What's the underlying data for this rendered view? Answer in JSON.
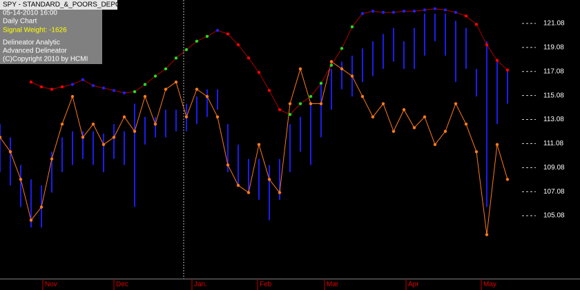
{
  "chart_data": {
    "type": "line",
    "title": "SPY - STANDARD_&_POORS_DEPOS",
    "info_lines": [
      "05-14-2010  16:00",
      "Daily Chart"
    ],
    "signal_line": "Signal Weight: -1626",
    "credit_lines": [
      "Delineator Analytic",
      "Advanced Delineator",
      "(C)Copyright 2010 by HCMI"
    ],
    "x": [
      0,
      3,
      6,
      9,
      12,
      15,
      18,
      21,
      24,
      27,
      30,
      33,
      36,
      39,
      42,
      45,
      48,
      51,
      54,
      57,
      60,
      63,
      66,
      69,
      72,
      75,
      78,
      81,
      84,
      87,
      90,
      93,
      96,
      99,
      102,
      105,
      108,
      111,
      114,
      117,
      120,
      123,
      126,
      129,
      132,
      135,
      138,
      141,
      144,
      147
    ],
    "xlim": [
      0,
      168
    ],
    "xticks": [
      {
        "value": 12.4,
        "label": "Nov"
      },
      {
        "value": 33,
        "label": "Dec"
      },
      {
        "value": 55.6,
        "label": "Jan."
      },
      {
        "value": 74.6,
        "label": "Feb"
      },
      {
        "value": 94,
        "label": "Mar"
      },
      {
        "value": 117.6,
        "label": "Apr"
      },
      {
        "value": 139.4,
        "label": "May"
      }
    ],
    "ylim": [
      99.81,
      123.03
    ],
    "yticks": [
      105.08,
      107.08,
      109.08,
      111.08,
      113.08,
      115.08,
      117.08,
      119.08,
      121.08
    ],
    "bars": {
      "color": "#1c1cf0",
      "high": [
        112.7,
        111.6,
        109.3,
        108.1,
        107.6,
        110.4,
        111.6,
        112.1,
        112.1,
        112.1,
        111.9,
        112.7,
        112.1,
        114.4,
        113.3,
        113.3,
        113.9,
        113.9,
        114.4,
        115.0,
        115.6,
        115.6,
        112.7,
        111.0,
        109.8,
        109.8,
        109.3,
        109.8,
        112.7,
        113.3,
        114.4,
        116.2,
        117.3,
        117.9,
        118.4,
        119.0,
        119.6,
        120.2,
        120.7,
        119.6,
        120.7,
        121.9,
        121.9,
        121.9,
        121.3,
        120.7,
        117.3,
        119.6,
        117.9,
        117.3
      ],
      "low": [
        108.7,
        107.6,
        105.8,
        104.1,
        104.1,
        107.0,
        108.7,
        109.3,
        109.8,
        109.3,
        108.7,
        109.8,
        109.3,
        105.8,
        111.0,
        111.6,
        111.6,
        112.1,
        112.1,
        112.7,
        113.3,
        113.9,
        108.7,
        107.6,
        107.0,
        106.4,
        104.7,
        106.4,
        108.7,
        110.4,
        109.3,
        111.6,
        113.9,
        115.6,
        115.0,
        116.2,
        116.7,
        117.3,
        117.9,
        117.3,
        117.3,
        118.4,
        119.6,
        118.4,
        116.2,
        117.3,
        115.0,
        105.8,
        112.7,
        114.4
      ]
    },
    "trend": {
      "line_color": "#b00000",
      "values": [
        null,
        null,
        null,
        116.2,
        115.8,
        115.6,
        115.8,
        116.0,
        116.4,
        115.9,
        115.7,
        115.5,
        115.3,
        115.4,
        116.0,
        116.7,
        117.3,
        118.2,
        118.9,
        119.6,
        120.0,
        120.5,
        120.2,
        119.3,
        118.2,
        117.0,
        115.5,
        113.9,
        113.5,
        114.4,
        115.0,
        116.1,
        117.6,
        119.0,
        120.8,
        121.9,
        122.1,
        122.0,
        122.0,
        122.1,
        122.1,
        122.2,
        122.3,
        122.2,
        122.0,
        121.7,
        121.0,
        119.3,
        118.0,
        117.2
      ],
      "point_colors": [
        "#ff0000",
        "#ff0000",
        "#ff0000",
        "#ff0000",
        "#ff0000",
        "#ff0000",
        "#ff0000",
        "#2020ff",
        "#2020ff",
        "#2020ff",
        "#2020ff",
        "#2020ff",
        "#2020ff",
        "#22dd22",
        "#22dd22",
        "#22dd22",
        "#22dd22",
        "#22dd22",
        "#22dd22",
        "#22dd22",
        "#22dd22",
        "#2020ff",
        "#ff0000",
        "#ff0000",
        "#ff0000",
        "#ff0000",
        "#ff0000",
        "#ff0000",
        "#22dd22",
        "#22dd22",
        "#22dd22",
        "#22dd22",
        "#22dd22",
        "#22dd22",
        "#22dd22",
        "#2020ff",
        "#2020ff",
        "#2020ff",
        "#2020ff",
        "#2020ff",
        "#2020ff",
        "#2020ff",
        "#2020ff",
        "#2020ff",
        "#2020ff",
        "#ff0000",
        "#ff0000",
        "#ff0000",
        "#ff0000",
        "#ff0000"
      ]
    },
    "oscillator": {
      "color": "#ff7a1a",
      "values": [
        111.6,
        110.4,
        108.1,
        104.7,
        105.8,
        109.8,
        112.7,
        115.0,
        111.6,
        112.7,
        111.0,
        111.6,
        113.3,
        112.1,
        115.0,
        112.7,
        115.6,
        116.2,
        113.3,
        115.6,
        115.0,
        113.3,
        109.3,
        107.6,
        107.0,
        111.0,
        108.1,
        107.0,
        114.4,
        117.3,
        114.4,
        114.4,
        117.9,
        117.3,
        116.7,
        115.0,
        113.3,
        114.4,
        112.1,
        113.9,
        112.4,
        113.3,
        111.0,
        112.1,
        114.4,
        112.7,
        110.4,
        103.5,
        111.0,
        108.1
      ]
    }
  }
}
